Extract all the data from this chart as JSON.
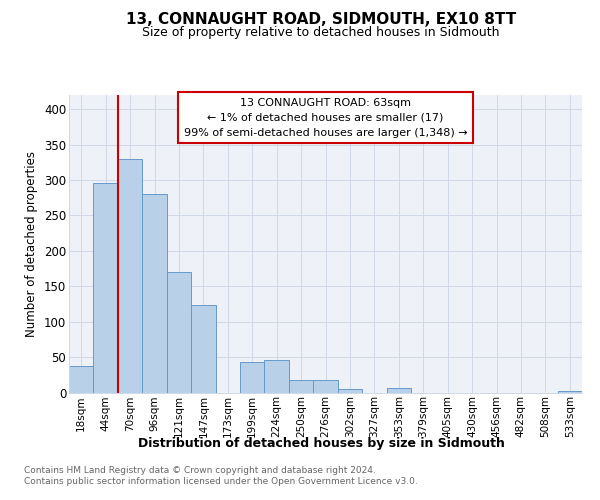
{
  "title": "13, CONNAUGHT ROAD, SIDMOUTH, EX10 8TT",
  "subtitle": "Size of property relative to detached houses in Sidmouth",
  "xlabel": "Distribution of detached houses by size in Sidmouth",
  "ylabel": "Number of detached properties",
  "bar_color": "#b8d0e8",
  "bar_edge_color": "#6699cc",
  "categories": [
    "18sqm",
    "44sqm",
    "70sqm",
    "96sqm",
    "121sqm",
    "147sqm",
    "173sqm",
    "199sqm",
    "224sqm",
    "250sqm",
    "276sqm",
    "302sqm",
    "327sqm",
    "353sqm",
    "379sqm",
    "405sqm",
    "430sqm",
    "456sqm",
    "482sqm",
    "508sqm",
    "533sqm"
  ],
  "values": [
    37,
    296,
    330,
    280,
    170,
    123,
    0,
    43,
    46,
    17,
    17,
    5,
    0,
    6,
    0,
    0,
    0,
    0,
    0,
    0,
    2
  ],
  "ylim": [
    0,
    420
  ],
  "yticks": [
    0,
    50,
    100,
    150,
    200,
    250,
    300,
    350,
    400
  ],
  "annotation_text_line1": "13 CONNAUGHT ROAD: 63sqm",
  "annotation_text_line2": "← 1% of detached houses are smaller (17)",
  "annotation_text_line3": "99% of semi-detached houses are larger (1,348) →",
  "annotation_box_color": "#ffffff",
  "annotation_box_edge_color": "#cc0000",
  "vline_color": "#cc0000",
  "footer_line1": "Contains HM Land Registry data © Crown copyright and database right 2024.",
  "footer_line2": "Contains public sector information licensed under the Open Government Licence v3.0.",
  "grid_color": "#d0d8e8",
  "background_color": "#eef2f8"
}
